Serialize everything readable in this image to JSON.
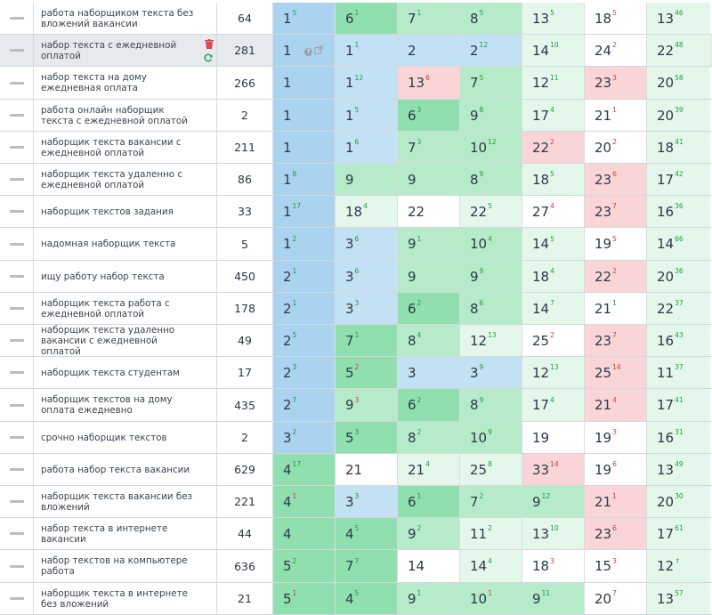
{
  "rows": [
    {
      "kw": "работа наборщиком текста без вложений вакансии",
      "fr": "64",
      "pos": [
        [
          "1",
          "5",
          "up",
          "b1"
        ],
        [
          "6",
          "1",
          "up",
          "g1"
        ],
        [
          "7",
          "1",
          "up",
          "g2"
        ],
        [
          "8",
          "5",
          "up",
          "g2"
        ],
        [
          "13",
          "5",
          "up",
          "g3"
        ],
        [
          "18",
          "5",
          "down",
          "w"
        ],
        [
          "13",
          "46",
          "up",
          "g3"
        ]
      ]
    },
    {
      "kw": "набор текста с ежедневной оплатой",
      "fr": "281",
      "selected": true,
      "pos": [
        [
          "1",
          "",
          "",
          "b1"
        ],
        [
          "1",
          "1",
          "up",
          "b2"
        ],
        [
          "2",
          "",
          "",
          "b2"
        ],
        [
          "2",
          "12",
          "up",
          "b2"
        ],
        [
          "14",
          "10",
          "up",
          "g3"
        ],
        [
          "24",
          "2",
          "down",
          "w"
        ],
        [
          "22",
          "48",
          "up",
          "g3"
        ]
      ]
    },
    {
      "kw": "набор текста на дому ежедневная оплата",
      "fr": "266",
      "pos": [
        [
          "1",
          "",
          "",
          "b1"
        ],
        [
          "1",
          "12",
          "up",
          "b2"
        ],
        [
          "13",
          "6",
          "down",
          "r1"
        ],
        [
          "7",
          "5",
          "up",
          "g2"
        ],
        [
          "12",
          "11",
          "up",
          "g3"
        ],
        [
          "23",
          "3",
          "down",
          "r1"
        ],
        [
          "20",
          "58",
          "up",
          "g3"
        ]
      ]
    },
    {
      "kw": "работа онлайн наборщик текста с ежедневной оплатой",
      "fr": "2",
      "pos": [
        [
          "1",
          "",
          "",
          "b1"
        ],
        [
          "1",
          "5",
          "up",
          "b2"
        ],
        [
          "6",
          "3",
          "up",
          "g1"
        ],
        [
          "9",
          "8",
          "up",
          "g2"
        ],
        [
          "17",
          "4",
          "up",
          "g3"
        ],
        [
          "21",
          "1",
          "down",
          "w"
        ],
        [
          "20",
          "39",
          "up",
          "g3"
        ]
      ]
    },
    {
      "kw": "наборщик текста вакансии с ежедневной оплатой",
      "fr": "211",
      "pos": [
        [
          "1",
          "",
          "",
          "b1"
        ],
        [
          "1",
          "6",
          "up",
          "b2"
        ],
        [
          "7",
          "3",
          "up",
          "g2"
        ],
        [
          "10",
          "12",
          "up",
          "g2"
        ],
        [
          "22",
          "2",
          "down",
          "r1"
        ],
        [
          "20",
          "2",
          "down",
          "w"
        ],
        [
          "18",
          "41",
          "up",
          "g3"
        ]
      ]
    },
    {
      "kw": "наборщик текста удаленно с ежедневной оплатой",
      "fr": "86",
      "pos": [
        [
          "1",
          "8",
          "up",
          "b1"
        ],
        [
          "9",
          "",
          "",
          "g2"
        ],
        [
          "9",
          "",
          "",
          "g2"
        ],
        [
          "8",
          "9",
          "up",
          "g2"
        ],
        [
          "18",
          "5",
          "up",
          "g3"
        ],
        [
          "23",
          "6",
          "down",
          "r1"
        ],
        [
          "17",
          "42",
          "up",
          "g3"
        ]
      ]
    },
    {
      "kw": "наборщик текстов задания",
      "fr": "33",
      "pos": [
        [
          "1",
          "17",
          "up",
          "b1"
        ],
        [
          "18",
          "4",
          "up",
          "g3"
        ],
        [
          "22",
          "",
          "",
          "w"
        ],
        [
          "22",
          "5",
          "up",
          "g3"
        ],
        [
          "27",
          "4",
          "down",
          "w"
        ],
        [
          "23",
          "7",
          "down",
          "r1"
        ],
        [
          "16",
          "36",
          "up",
          "g3"
        ]
      ]
    },
    {
      "kw": "надомная наборщик текста",
      "fr": "5",
      "pos": [
        [
          "1",
          "2",
          "up",
          "b1"
        ],
        [
          "3",
          "6",
          "up",
          "b2"
        ],
        [
          "9",
          "1",
          "up",
          "g2"
        ],
        [
          "10",
          "4",
          "up",
          "g2"
        ],
        [
          "14",
          "5",
          "up",
          "g3"
        ],
        [
          "19",
          "5",
          "down",
          "w"
        ],
        [
          "14",
          "66",
          "up",
          "g3"
        ]
      ]
    },
    {
      "kw": "ищу работу набор текста",
      "fr": "450",
      "pos": [
        [
          "2",
          "1",
          "up",
          "b1"
        ],
        [
          "3",
          "6",
          "up",
          "b2"
        ],
        [
          "9",
          "",
          "",
          "g2"
        ],
        [
          "9",
          "9",
          "up",
          "g2"
        ],
        [
          "18",
          "4",
          "up",
          "g3"
        ],
        [
          "22",
          "2",
          "down",
          "r1"
        ],
        [
          "20",
          "36",
          "up",
          "g3"
        ]
      ]
    },
    {
      "kw": "наборщик текста работа с ежедневной оплатой",
      "fr": "178",
      "pos": [
        [
          "2",
          "1",
          "up",
          "b1"
        ],
        [
          "3",
          "3",
          "up",
          "b2"
        ],
        [
          "6",
          "2",
          "up",
          "g1"
        ],
        [
          "8",
          "6",
          "up",
          "g2"
        ],
        [
          "14",
          "7",
          "up",
          "g3"
        ],
        [
          "21",
          "1",
          "up",
          "w"
        ],
        [
          "22",
          "37",
          "up",
          "g3"
        ]
      ]
    },
    {
      "kw": "наборщик текста удаленно вакансии с ежедневной оплатой",
      "fr": "49",
      "pos": [
        [
          "2",
          "5",
          "up",
          "b1"
        ],
        [
          "7",
          "1",
          "up",
          "g1"
        ],
        [
          "8",
          "4",
          "up",
          "g2"
        ],
        [
          "12",
          "13",
          "up",
          "g3"
        ],
        [
          "25",
          "2",
          "down",
          "w"
        ],
        [
          "23",
          "7",
          "down",
          "r1"
        ],
        [
          "16",
          "43",
          "up",
          "g3"
        ]
      ]
    },
    {
      "kw": "наборщик текста студентам",
      "fr": "17",
      "pos": [
        [
          "2",
          "3",
          "up",
          "b1"
        ],
        [
          "5",
          "2",
          "down",
          "g1"
        ],
        [
          "3",
          "",
          "",
          "b2"
        ],
        [
          "3",
          "9",
          "up",
          "b2"
        ],
        [
          "12",
          "13",
          "up",
          "g3"
        ],
        [
          "25",
          "14",
          "down",
          "r1"
        ],
        [
          "11",
          "37",
          "up",
          "g3"
        ]
      ]
    },
    {
      "kw": "наборщик текстов на дому оплата ежедневно",
      "fr": "435",
      "pos": [
        [
          "2",
          "7",
          "up",
          "b1"
        ],
        [
          "9",
          "3",
          "down",
          "g2"
        ],
        [
          "6",
          "2",
          "up",
          "g1"
        ],
        [
          "8",
          "9",
          "up",
          "g2"
        ],
        [
          "17",
          "4",
          "up",
          "g3"
        ],
        [
          "21",
          "4",
          "down",
          "r1"
        ],
        [
          "17",
          "41",
          "up",
          "g3"
        ]
      ]
    },
    {
      "kw": "срочно наборщик текстов",
      "fr": "2",
      "pos": [
        [
          "3",
          "2",
          "up",
          "b1"
        ],
        [
          "5",
          "3",
          "up",
          "g1"
        ],
        [
          "8",
          "2",
          "up",
          "g2"
        ],
        [
          "10",
          "9",
          "up",
          "g2"
        ],
        [
          "19",
          "",
          "",
          "w"
        ],
        [
          "19",
          "3",
          "down",
          "w"
        ],
        [
          "16",
          "31",
          "up",
          "g3"
        ]
      ]
    },
    {
      "kw": "работа набор текста вакансии",
      "fr": "629",
      "pos": [
        [
          "4",
          "17",
          "up",
          "g1"
        ],
        [
          "21",
          "",
          "",
          "w"
        ],
        [
          "21",
          "4",
          "up",
          "g3"
        ],
        [
          "25",
          "8",
          "up",
          "g3"
        ],
        [
          "33",
          "14",
          "down",
          "r1"
        ],
        [
          "19",
          "6",
          "down",
          "w"
        ],
        [
          "13",
          "49",
          "up",
          "g3"
        ]
      ]
    },
    {
      "kw": "наборщик текста вакансии без вложений",
      "fr": "221",
      "pos": [
        [
          "4",
          "1",
          "down",
          "g1"
        ],
        [
          "3",
          "3",
          "up",
          "b2"
        ],
        [
          "6",
          "1",
          "up",
          "g1"
        ],
        [
          "7",
          "2",
          "up",
          "g2"
        ],
        [
          "9",
          "12",
          "up",
          "g2"
        ],
        [
          "21",
          "1",
          "down",
          "r1"
        ],
        [
          "20",
          "30",
          "up",
          "g3"
        ]
      ]
    },
    {
      "kw": "набор текста в интернете вакансии",
      "fr": "44",
      "pos": [
        [
          "4",
          "",
          "",
          "g1"
        ],
        [
          "4",
          "5",
          "up",
          "g1"
        ],
        [
          "9",
          "2",
          "up",
          "g2"
        ],
        [
          "11",
          "2",
          "up",
          "g3"
        ],
        [
          "13",
          "10",
          "up",
          "g3"
        ],
        [
          "23",
          "6",
          "down",
          "r1"
        ],
        [
          "17",
          "61",
          "up",
          "g3"
        ]
      ]
    },
    {
      "kw": "набор текстов на компьютере работа",
      "fr": "636",
      "pos": [
        [
          "5",
          "2",
          "up",
          "g1"
        ],
        [
          "7",
          "7",
          "up",
          "g1"
        ],
        [
          "14",
          "",
          "",
          "w"
        ],
        [
          "14",
          "4",
          "up",
          "g3"
        ],
        [
          "18",
          "3",
          "down",
          "w"
        ],
        [
          "15",
          "3",
          "down",
          "w"
        ],
        [
          "12",
          "↑",
          "up",
          "g3"
        ]
      ]
    },
    {
      "kw": "наборщик текста в интернете без вложений",
      "fr": "21",
      "pos": [
        [
          "5",
          "1",
          "down",
          "g1"
        ],
        [
          "4",
          "5",
          "up",
          "g1"
        ],
        [
          "9",
          "1",
          "up",
          "g2"
        ],
        [
          "10",
          "1",
          "down",
          "g2"
        ],
        [
          "9",
          "11",
          "up",
          "g2"
        ],
        [
          "20",
          "7",
          "down",
          "w"
        ],
        [
          "13",
          "57",
          "up",
          "g3"
        ]
      ]
    }
  ]
}
